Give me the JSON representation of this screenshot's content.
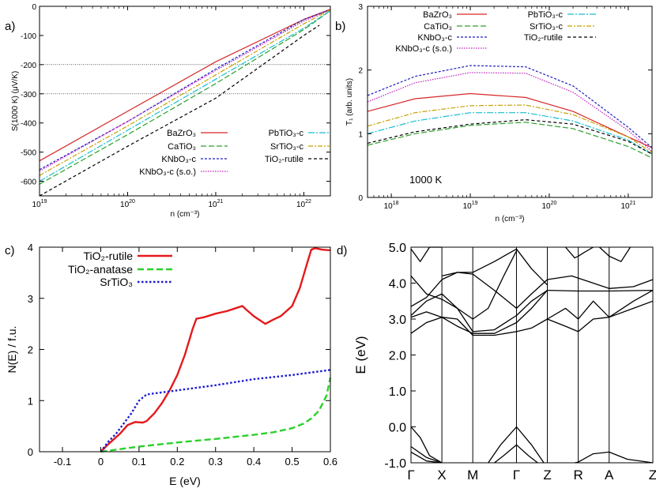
{
  "chart_data": [
    {
      "panel": "a",
      "panel_label": "a)",
      "type": "line",
      "xscale": "log",
      "xlabel": "n (cm⁻³)",
      "ylabel": "S(1000 K) (μV/K)",
      "xlim": [
        1e+19,
        2e+22
      ],
      "ylim": [
        -650,
        0
      ],
      "x_ticks": [
        {
          "label": "10",
          "sup": "19",
          "value": 1e+19
        },
        {
          "label": "10",
          "sup": "20",
          "value": 1e+20
        },
        {
          "label": "10",
          "sup": "21",
          "value": 1e+21
        },
        {
          "label": "10",
          "sup": "22",
          "value": 1e+22
        }
      ],
      "y_ticks": [
        {
          "label": "0",
          "value": 0
        },
        {
          "label": "-100",
          "value": -100
        },
        {
          "label": "-200",
          "value": -200
        },
        {
          "label": "-300",
          "value": -300
        },
        {
          "label": "-400",
          "value": -400
        },
        {
          "label": "-500",
          "value": -500
        },
        {
          "label": "-600",
          "value": -600
        }
      ],
      "ref_lines": [
        -200,
        -300
      ],
      "legend_position": "bottom-right",
      "series": [
        {
          "name": "BaZrO₃",
          "color": "#d62728",
          "dash": "",
          "x": [
            1e+19,
            1e+20,
            1e+21,
            1e+22,
            2e+22
          ],
          "y": [
            -530,
            -360,
            -190,
            -45,
            -10
          ]
        },
        {
          "name": "CaTiO₃",
          "color": "#2ca02c",
          "dash": "7,3",
          "x": [
            1e+19,
            1e+20,
            1e+21,
            1e+22,
            2e+22
          ],
          "y": [
            -610,
            -440,
            -265,
            -80,
            -15
          ]
        },
        {
          "name": "KNbO₃-c",
          "color": "#1f1fbf",
          "dash": "3,2",
          "x": [
            1e+19,
            1e+20,
            1e+21,
            1e+22,
            2e+22
          ],
          "y": [
            -560,
            -395,
            -215,
            -45,
            -12
          ]
        },
        {
          "name": "KNbO₃-c (s.o.)",
          "color": "#c020c0",
          "dash": "1.5,1.5",
          "x": [
            1e+19,
            1e+20,
            1e+21,
            1e+22,
            2e+22
          ],
          "y": [
            -565,
            -395,
            -220,
            -50,
            -12
          ]
        },
        {
          "name": "PbTiO₃-c",
          "color": "#17becf",
          "dash": "8,2,2,2",
          "x": [
            1e+19,
            1e+20,
            1e+21,
            1e+22,
            2e+22
          ],
          "y": [
            -600,
            -425,
            -250,
            -75,
            -15
          ]
        },
        {
          "name": "SrTiO₃-c",
          "color": "#c8a000",
          "dash": "6,2,2,2",
          "x": [
            1e+19,
            1e+20,
            1e+21,
            1e+22,
            2e+22
          ],
          "y": [
            -580,
            -410,
            -235,
            -60,
            -12
          ]
        },
        {
          "name": "TiO₂-rutile",
          "color": "#000000",
          "dash": "4,3",
          "x": [
            1e+19,
            1e+20,
            1e+21,
            1e+22,
            1.5e+22
          ],
          "y": [
            -650,
            -480,
            -315,
            -100,
            -65
          ]
        }
      ]
    },
    {
      "panel": "b",
      "panel_label": "b)",
      "type": "line",
      "xscale": "log",
      "xlabel": "n (cm⁻³)",
      "ylabel": "T₁ (arb. units)",
      "xlim": [
        5e+17,
        2e+21
      ],
      "ylim": [
        0,
        3
      ],
      "x_ticks": [
        {
          "label": "10",
          "sup": "18",
          "value": 1e+18
        },
        {
          "label": "10",
          "sup": "19",
          "value": 1e+19
        },
        {
          "label": "10",
          "sup": "20",
          "value": 1e+20
        },
        {
          "label": "10",
          "sup": "21",
          "value": 1e+21
        }
      ],
      "y_ticks": [
        {
          "label": "0",
          "value": 0
        },
        {
          "label": "1",
          "value": 1
        },
        {
          "label": "2",
          "value": 2
        },
        {
          "label": "3",
          "value": 3
        }
      ],
      "annotation": "1000 K",
      "legend_position": "top",
      "series": [
        {
          "name": "BaZrO₃",
          "color": "#d62728",
          "dash": "",
          "x": [
            5e+17,
            2e+18,
            1e+19,
            5e+19,
            2e+20,
            1e+21,
            2e+21
          ],
          "y": [
            1.35,
            1.55,
            1.63,
            1.57,
            1.35,
            0.95,
            0.78
          ]
        },
        {
          "name": "CaTiO₃",
          "color": "#2ca02c",
          "dash": "7,3",
          "x": [
            5e+17,
            2e+18,
            1e+19,
            5e+19,
            2e+20,
            1e+21,
            2e+21
          ],
          "y": [
            0.82,
            1.0,
            1.13,
            1.18,
            1.08,
            0.8,
            0.62
          ]
        },
        {
          "name": "KNbO₃-c",
          "color": "#1f1fbf",
          "dash": "3,2",
          "x": [
            5e+17,
            2e+18,
            1e+19,
            5e+19,
            2e+20,
            1e+21,
            2e+21
          ],
          "y": [
            1.6,
            1.9,
            2.07,
            2.05,
            1.75,
            1.1,
            0.78
          ]
        },
        {
          "name": "KNbO₃-c (s.o.)",
          "color": "#c020c0",
          "dash": "1.5,1.5",
          "x": [
            5e+17,
            2e+18,
            1e+19,
            5e+19,
            2e+20,
            1e+21,
            2e+21
          ],
          "y": [
            1.5,
            1.8,
            1.96,
            1.95,
            1.65,
            1.05,
            0.72
          ]
        },
        {
          "name": "PbTiO₃-c",
          "color": "#17becf",
          "dash": "8,2,2,2",
          "x": [
            5e+17,
            2e+18,
            1e+19,
            5e+19,
            2e+20,
            1e+21,
            2e+21
          ],
          "y": [
            1.0,
            1.2,
            1.33,
            1.33,
            1.2,
            0.9,
            0.68
          ]
        },
        {
          "name": "SrTiO₃-c",
          "color": "#c8a000",
          "dash": "6,2,2,2",
          "x": [
            5e+17,
            2e+18,
            1e+19,
            5e+19,
            2e+20,
            1e+21,
            2e+21
          ],
          "y": [
            1.12,
            1.33,
            1.44,
            1.45,
            1.3,
            0.95,
            0.7
          ]
        },
        {
          "name": "TiO₂-rutile",
          "color": "#000000",
          "dash": "4,3",
          "x": [
            5e+17,
            2e+18,
            1e+19,
            5e+19,
            2e+20,
            1e+21,
            2e+21
          ],
          "y": [
            0.85,
            1.03,
            1.15,
            1.22,
            1.15,
            0.88,
            0.68
          ]
        }
      ]
    },
    {
      "panel": "c",
      "panel_label": "c)",
      "type": "line",
      "xlabel": "E (eV)",
      "ylabel": "N(E) / f.u.",
      "xlim": [
        -0.16,
        0.6
      ],
      "ylim": [
        0,
        4
      ],
      "x_ticks": [
        {
          "label": "-0.1",
          "value": -0.1
        },
        {
          "label": "0",
          "value": 0
        },
        {
          "label": "0.1",
          "value": 0.1
        },
        {
          "label": "0.2",
          "value": 0.2
        },
        {
          "label": "0.3",
          "value": 0.3
        },
        {
          "label": "0.4",
          "value": 0.4
        },
        {
          "label": "0.5",
          "value": 0.5
        },
        {
          "label": "0.6",
          "value": 0.6
        }
      ],
      "y_ticks": [
        {
          "label": "0",
          "value": 0
        },
        {
          "label": "1",
          "value": 1
        },
        {
          "label": "2",
          "value": 2
        },
        {
          "label": "3",
          "value": 3
        },
        {
          "label": "4",
          "value": 4
        }
      ],
      "legend_position": "top-left",
      "series": [
        {
          "name": "TiO₂-rutile",
          "color": "#e41a1c",
          "dash": "",
          "width": 2.4,
          "x": [
            0,
            0.02,
            0.05,
            0.07,
            0.09,
            0.11,
            0.12,
            0.14,
            0.16,
            0.18,
            0.2,
            0.22,
            0.24,
            0.25,
            0.27,
            0.3,
            0.33,
            0.35,
            0.37,
            0.38,
            0.4,
            0.42,
            0.43,
            0.45,
            0.47,
            0.5,
            0.52,
            0.54,
            0.55,
            0.56,
            0.58,
            0.6
          ],
          "y": [
            0,
            0.15,
            0.35,
            0.52,
            0.58,
            0.57,
            0.6,
            0.75,
            0.95,
            1.2,
            1.5,
            1.9,
            2.4,
            2.6,
            2.63,
            2.7,
            2.75,
            2.8,
            2.85,
            2.78,
            2.65,
            2.55,
            2.5,
            2.58,
            2.65,
            2.85,
            3.2,
            3.7,
            3.95,
            3.98,
            3.95,
            3.94
          ]
        },
        {
          "name": "TiO₂-anatase",
          "color": "#2bd02b",
          "dash": "8,4",
          "width": 2.4,
          "x": [
            0,
            0.1,
            0.2,
            0.3,
            0.4,
            0.45,
            0.5,
            0.53,
            0.55,
            0.57,
            0.59,
            0.6
          ],
          "y": [
            0,
            0.1,
            0.18,
            0.25,
            0.33,
            0.38,
            0.46,
            0.55,
            0.65,
            0.8,
            1.1,
            1.45
          ]
        },
        {
          "name": "SrTiO₃",
          "color": "#1c1cd0",
          "dash": "2.5,2.5",
          "width": 2.4,
          "x": [
            0,
            0.02,
            0.04,
            0.06,
            0.08,
            0.1,
            0.12,
            0.13,
            0.15,
            0.2,
            0.3,
            0.4,
            0.5,
            0.6
          ],
          "y": [
            0,
            0.2,
            0.35,
            0.55,
            0.75,
            1.0,
            1.12,
            1.13,
            1.15,
            1.2,
            1.3,
            1.42,
            1.5,
            1.6
          ]
        }
      ]
    },
    {
      "panel": "d",
      "panel_label": "d)",
      "type": "line",
      "ylabel": "E (eV)",
      "ylim": [
        -1.0,
        5.0
      ],
      "kpath": [
        "Γ",
        "X",
        "M",
        "Γ",
        "Z",
        "R",
        "A",
        "Z"
      ],
      "kpos": [
        0,
        1,
        2,
        3.414,
        4.414,
        5.414,
        6.414,
        7.828
      ],
      "y_ticks": [
        {
          "label": "-1.0",
          "value": -1.0
        },
        {
          "label": "0.0",
          "value": 0.0
        },
        {
          "label": "1.0",
          "value": 1.0
        },
        {
          "label": "2.0",
          "value": 2.0
        },
        {
          "label": "3.0",
          "value": 3.0
        },
        {
          "label": "4.0",
          "value": 4.0
        },
        {
          "label": "5.0",
          "value": 5.0
        }
      ],
      "bands": [
        {
          "x": [
            0,
            0.5,
            1
          ],
          "y": [
            -0.55,
            -0.85,
            -1.0
          ]
        },
        {
          "x": [
            0,
            0.5,
            1
          ],
          "y": [
            -0.7,
            -0.95,
            -1.0
          ]
        },
        {
          "x": [
            0,
            0.3,
            0.6,
            1
          ],
          "y": [
            0.0,
            -0.3,
            -0.8,
            -1.0
          ]
        },
        {
          "x": [
            3.414,
            2.9,
            2.5
          ],
          "y": [
            0.0,
            -0.5,
            -1.0
          ]
        },
        {
          "x": [
            3.414,
            3.9,
            4.3
          ],
          "y": [
            0.0,
            -0.5,
            -1.0
          ]
        },
        {
          "x": [
            3.414,
            3.0,
            2.7
          ],
          "y": [
            -0.5,
            -0.8,
            -1.0
          ]
        },
        {
          "x": [
            3.414,
            3.8,
            4.1
          ],
          "y": [
            -0.5,
            -0.8,
            -1.0
          ]
        },
        {
          "x": [
            5.3,
            5.414,
            5.9,
            6.414,
            7.0,
            7.828
          ],
          "y": [
            -1.0,
            -0.98,
            -0.75,
            -0.7,
            -0.9,
            -1.0
          ]
        },
        {
          "x": [
            0,
            0.5,
            1,
            1.5,
            2,
            2.7,
            3.414,
            3.9,
            4.414
          ],
          "y": [
            2.6,
            2.9,
            3.05,
            3.0,
            2.55,
            2.55,
            2.65,
            2.75,
            3.0
          ]
        },
        {
          "x": [
            0,
            0.5,
            1,
            1.5,
            2,
            2.7,
            3.414,
            3.9,
            4.414
          ],
          "y": [
            3.05,
            3.2,
            3.05,
            2.8,
            2.6,
            2.6,
            2.9,
            3.3,
            3.8
          ]
        },
        {
          "x": [
            0,
            0.5,
            1,
            1.5,
            2,
            2.7,
            3.414,
            3.9,
            4.414
          ],
          "y": [
            3.1,
            3.5,
            3.7,
            3.3,
            2.65,
            2.7,
            3.1,
            3.5,
            3.8
          ]
        },
        {
          "x": [
            0,
            0.5,
            1,
            1.5,
            2,
            2.7,
            3.414,
            3.9,
            4.414
          ],
          "y": [
            3.35,
            3.6,
            4.1,
            4.3,
            4.25,
            3.8,
            3.3,
            3.7,
            4.1
          ]
        },
        {
          "x": [
            0,
            0.5,
            1,
            1.5,
            2,
            2.5,
            3.0,
            3.414
          ],
          "y": [
            4.2,
            3.7,
            3.55,
            3.3,
            3.0,
            3.3,
            4.2,
            4.9
          ]
        },
        {
          "x": [
            1,
            1.5,
            2,
            2.7,
            3.414,
            3.9,
            4.414
          ],
          "y": [
            4.2,
            4.3,
            4.3,
            4.6,
            4.95,
            4.4,
            3.95
          ]
        },
        {
          "x": [
            0,
            0.3,
            0.6,
            1
          ],
          "y": [
            4.95,
            4.6,
            5.0,
            5.0
          ]
        },
        {
          "x": [
            4.414,
            5.414,
            6.414,
            7.828
          ],
          "y": [
            3.8,
            3.78,
            3.78,
            3.8
          ]
        },
        {
          "x": [
            4.414,
            5.0,
            5.414,
            5.9,
            6.414,
            7.2,
            7.828
          ],
          "y": [
            3.0,
            3.3,
            3.0,
            3.5,
            3.05,
            3.3,
            3.5
          ]
        },
        {
          "x": [
            4.414,
            5.0,
            5.414,
            5.9,
            6.414,
            7.2,
            7.828
          ],
          "y": [
            3.0,
            2.8,
            2.65,
            3.0,
            3.05,
            3.5,
            3.8
          ]
        },
        {
          "x": [
            4.414,
            5.2,
            5.9,
            6.414,
            7.2,
            7.828
          ],
          "y": [
            4.1,
            4.2,
            4.0,
            3.85,
            3.9,
            4.1
          ]
        },
        {
          "x": [
            5.0,
            5.3,
            5.414,
            5.6,
            5.9
          ],
          "y": [
            5.0,
            4.7,
            4.75,
            4.85,
            5.0
          ]
        },
        {
          "x": [
            6.1,
            6.414,
            6.8,
            7.1
          ],
          "y": [
            5.0,
            4.75,
            4.6,
            5.0
          ]
        }
      ]
    }
  ]
}
